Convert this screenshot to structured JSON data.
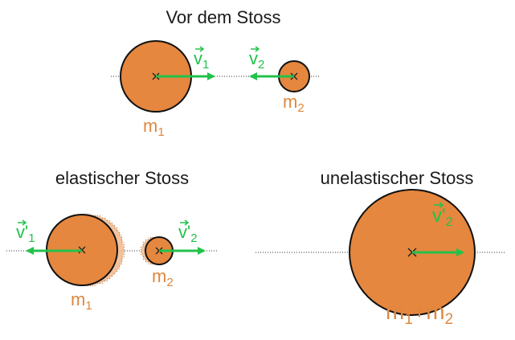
{
  "colors": {
    "body_fill": "#e5873f",
    "body_stroke": "#111111",
    "arrow": "#22c24a",
    "mass_label": "#e0873e",
    "title": "#1a1a1a",
    "ghost_fill": "#f0b98e"
  },
  "panels": {
    "before": {
      "title": "Vor dem Stoss",
      "v1": {
        "letter": "v",
        "sub": "1"
      },
      "v2": {
        "letter": "v",
        "sub": "2"
      },
      "m1": {
        "letter": "m",
        "sub": "1"
      },
      "m2": {
        "letter": "m",
        "sub": "2"
      }
    },
    "elastic": {
      "title": "elastischer Stoss",
      "v1": {
        "letter": "v'",
        "sub": "1"
      },
      "v2": {
        "letter": "v'",
        "sub": "2"
      },
      "m1": {
        "letter": "m",
        "sub": "1"
      },
      "m2": {
        "letter": "m",
        "sub": "2"
      }
    },
    "inelastic": {
      "title": "unelastischer Stoss",
      "v2": {
        "letter": "v'",
        "sub": "2"
      },
      "m_a": {
        "letter": "m",
        "sub": "1"
      },
      "plus": "+",
      "m_b": {
        "letter": "m",
        "sub": "2"
      }
    }
  },
  "icons": {
    "center_mark": "cross-icon",
    "arrow": "arrow-icon"
  }
}
